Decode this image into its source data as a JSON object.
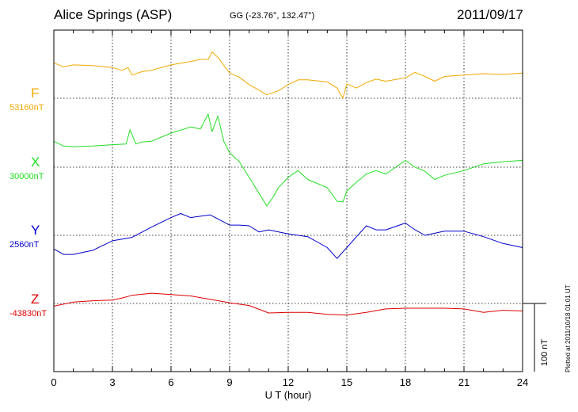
{
  "header": {
    "station": "Alice Springs (ASP)",
    "coords": "GG (-23.76°, 132.47°)",
    "date": "2011/09/17"
  },
  "footer_note": "Plotted at 2011/10/18 01:01  UT",
  "scale_label": "100 nT",
  "chart_data": {
    "type": "line",
    "title": "Alice Springs (ASP)",
    "subtitle": "GG (-23.76°, 132.47°)",
    "date": "2011/09/17",
    "xlabel": "U T (hour)",
    "xlim": [
      0,
      24
    ],
    "xticks": [
      0,
      3,
      6,
      9,
      12,
      15,
      18,
      21,
      24
    ],
    "scale_bar_nT": 100,
    "grid": true,
    "units": "nT",
    "series": [
      {
        "name": "F",
        "baseline_label": "53160nT",
        "color": "#f2a900",
        "x": [
          0,
          0.5,
          1,
          2,
          3,
          3.5,
          3.8,
          4,
          4.5,
          5,
          6,
          7,
          7.5,
          7.9,
          8.1,
          8.4,
          9,
          9.5,
          10,
          10.5,
          10.9,
          11.5,
          12,
          12.5,
          13,
          14,
          14.5,
          14.8,
          15,
          15.5,
          16,
          16.5,
          17,
          18,
          18.5,
          19,
          19.5,
          20,
          21,
          22,
          23,
          24
        ],
        "y": [
          52,
          46,
          49,
          48,
          45,
          41,
          45,
          34,
          39,
          41,
          49,
          54,
          57,
          57,
          68,
          60,
          37,
          31,
          20,
          12,
          5,
          11,
          20,
          27,
          27,
          24,
          15,
          0,
          21,
          15,
          23,
          28,
          25,
          30,
          38,
          32,
          25,
          32,
          34,
          36,
          35,
          37
        ]
      },
      {
        "name": "X",
        "baseline_label": "30000nT",
        "color": "#22dd22",
        "x": [
          0,
          0.5,
          1,
          2,
          3,
          3.7,
          3.9,
          4.2,
          4.5,
          5,
          6,
          7,
          7.5,
          7.9,
          8.1,
          8.4,
          8.7,
          9,
          9.5,
          10,
          10.5,
          10.9,
          11.2,
          11.5,
          12,
          12.5,
          13,
          14,
          14.5,
          14.8,
          15,
          15.5,
          16,
          16.5,
          17,
          18,
          18.5,
          19,
          19.5,
          20,
          21,
          22,
          23,
          24
        ],
        "y": [
          38,
          31,
          30,
          31,
          33,
          34,
          55,
          34,
          37,
          38,
          50,
          59,
          56,
          78,
          52,
          75,
          38,
          21,
          8,
          -15,
          -38,
          -57,
          -45,
          -30,
          -15,
          -5,
          -18,
          -30,
          -50,
          -51,
          -35,
          -22,
          -10,
          -5,
          -10,
          10,
          0,
          -6,
          -18,
          -12,
          -5,
          5,
          8,
          10
        ]
      },
      {
        "name": "Y",
        "baseline_label": "2560nT",
        "color": "#0000cc",
        "x": [
          0,
          0.5,
          1,
          2,
          3,
          4,
          5,
          6,
          6.5,
          7,
          8,
          9,
          9.5,
          10,
          10.5,
          11,
          12,
          13,
          14,
          14.5,
          15,
          15.5,
          16,
          16.5,
          17,
          18,
          18.5,
          19,
          20,
          21,
          22,
          23,
          24
        ],
        "y": [
          -20,
          -28,
          -28,
          -22,
          -8,
          -3,
          12,
          26,
          32,
          26,
          30,
          15,
          15,
          14,
          5,
          8,
          2,
          -2,
          -18,
          -34,
          -18,
          -2,
          14,
          8,
          8,
          18,
          8,
          0,
          6,
          6,
          -2,
          -12,
          -18
        ]
      },
      {
        "name": "Z",
        "baseline_label": "-43830nT",
        "color": "#dd0000",
        "x": [
          0,
          1,
          2,
          3,
          3.5,
          4,
          5,
          6,
          7,
          8,
          9,
          10,
          11,
          12,
          13,
          14,
          15,
          16,
          17,
          18,
          19,
          20,
          21,
          22,
          23,
          24
        ],
        "y": [
          -4,
          2,
          4,
          5,
          8,
          12,
          15,
          13,
          11,
          6,
          1,
          -3,
          -14,
          -13,
          -13,
          -16,
          -17,
          -13,
          -8,
          -7,
          -7,
          -7,
          -8,
          -13,
          -10,
          -11
        ]
      }
    ]
  }
}
